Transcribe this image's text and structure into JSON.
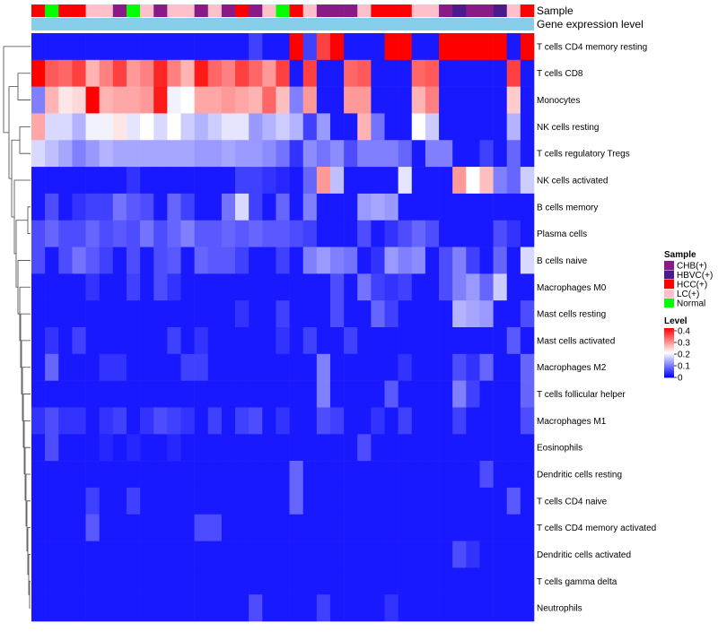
{
  "chart_data": {
    "type": "heatmap",
    "title": "",
    "annotation_labels": [
      "Sample",
      "Gene expression level"
    ],
    "rows": [
      "T cells CD4 memory resting",
      "T cells CD8",
      "Monocytes",
      "NK cells resting",
      "T cells regulatory  Tregs",
      "NK cells activated",
      "B cells memory",
      "Plasma cells",
      "B cells naive",
      "Macrophages M0",
      "Mast cells resting",
      "Mast cells activated",
      "Macrophages M2",
      "T cells follicular helper",
      "Macrophages M1",
      "Eosinophils",
      "Dendritic cells resting",
      "T cells CD4 naive",
      "T cells CD4 memory activated",
      "Dendritic cells activated",
      "T cells gamma delta",
      "Neutrophils"
    ],
    "sample_groups": [
      "HCC(+)",
      "Normal",
      "HCC(+)",
      "HCC(+)",
      "LC(+)",
      "LC(+)",
      "CHB(+)",
      "Normal",
      "LC(+)",
      "CHB(+)",
      "LC(+)",
      "LC(+)",
      "CHB(+)",
      "LC(+)",
      "CHB(+)",
      "HCC(+)",
      "CHB(+)",
      "LC(+)",
      "Normal",
      "HCC(+)",
      "LC(+)",
      "CHB(+)",
      "CHB(+)",
      "CHB(+)",
      "LC(+)",
      "HCC(+)",
      "HCC(+)",
      "HCC(+)",
      "LC(+)",
      "LC(+)",
      "CHB(+)",
      "HBVC(+)",
      "CHB(+)",
      "CHB(+)",
      "HBVC(+)",
      "LC(+)",
      "HCC(+)"
    ],
    "values": [
      [
        0.02,
        0.02,
        0.02,
        0.02,
        0.02,
        0.02,
        0.02,
        0.02,
        0.02,
        0.02,
        0.02,
        0.02,
        0.02,
        0.02,
        0.02,
        0.02,
        0.05,
        0.02,
        0.02,
        0.4,
        0.05,
        0.35,
        0.4,
        0.02,
        0.02,
        0.02,
        0.4,
        0.4,
        0.02,
        0.02,
        0.4,
        0.4,
        0.4,
        0.4,
        0.4,
        0.02,
        0.4
      ],
      [
        0.4,
        0.33,
        0.32,
        0.35,
        0.26,
        0.3,
        0.35,
        0.28,
        0.3,
        0.37,
        0.3,
        0.26,
        0.38,
        0.32,
        0.3,
        0.35,
        0.32,
        0.28,
        0.35,
        0.02,
        0.35,
        0.02,
        0.02,
        0.32,
        0.33,
        0.02,
        0.02,
        0.02,
        0.32,
        0.33,
        0.02,
        0.02,
        0.02,
        0.02,
        0.02,
        0.35,
        0.02
      ],
      [
        0.1,
        0.26,
        0.22,
        0.23,
        0.4,
        0.26,
        0.27,
        0.27,
        0.28,
        0.38,
        0.19,
        0.2,
        0.27,
        0.27,
        0.28,
        0.27,
        0.26,
        0.32,
        0.25,
        0.1,
        0.28,
        0.02,
        0.02,
        0.28,
        0.28,
        0.02,
        0.02,
        0.02,
        0.26,
        0.3,
        0.02,
        0.02,
        0.02,
        0.02,
        0.02,
        0.24,
        0.02
      ],
      [
        0.27,
        0.17,
        0.17,
        0.14,
        0.19,
        0.19,
        0.22,
        0.18,
        0.2,
        0.17,
        0.2,
        0.16,
        0.14,
        0.16,
        0.18,
        0.18,
        0.12,
        0.14,
        0.16,
        0.14,
        0.05,
        0.12,
        0.02,
        0.02,
        0.26,
        0.09,
        0.02,
        0.02,
        0.2,
        0.16,
        0.02,
        0.02,
        0.02,
        0.02,
        0.02,
        0.14,
        0.02
      ],
      [
        0.17,
        0.15,
        0.13,
        0.1,
        0.12,
        0.14,
        0.13,
        0.13,
        0.13,
        0.13,
        0.13,
        0.13,
        0.12,
        0.12,
        0.13,
        0.12,
        0.12,
        0.11,
        0.09,
        0.04,
        0.11,
        0.09,
        0.11,
        0.06,
        0.1,
        0.1,
        0.1,
        0.08,
        0.02,
        0.1,
        0.1,
        0.02,
        0.02,
        0.05,
        0.02,
        0.08,
        0.02
      ],
      [
        0.02,
        0.02,
        0.02,
        0.02,
        0.02,
        0.02,
        0.02,
        0.04,
        0.02,
        0.02,
        0.02,
        0.02,
        0.02,
        0.02,
        0.02,
        0.05,
        0.05,
        0.04,
        0.03,
        0.02,
        0.08,
        0.28,
        0.15,
        0.02,
        0.02,
        0.02,
        0.02,
        0.18,
        0.02,
        0.02,
        0.02,
        0.28,
        0.2,
        0.25,
        0.1,
        0.08,
        0.16
      ],
      [
        0.02,
        0.06,
        0.02,
        0.04,
        0.05,
        0.05,
        0.09,
        0.07,
        0.06,
        0.02,
        0.08,
        0.05,
        0.02,
        0.02,
        0.09,
        0.17,
        0.05,
        0.02,
        0.08,
        0.02,
        0.1,
        0.02,
        0.02,
        0.02,
        0.12,
        0.13,
        0.12,
        0.02,
        0.02,
        0.02,
        0.02,
        0.02,
        0.02,
        0.02,
        0.02,
        0.02,
        0.02
      ],
      [
        0.06,
        0.08,
        0.06,
        0.06,
        0.08,
        0.06,
        0.07,
        0.06,
        0.09,
        0.06,
        0.08,
        0.1,
        0.07,
        0.07,
        0.08,
        0.07,
        0.08,
        0.07,
        0.07,
        0.06,
        0.05,
        0.02,
        0.02,
        0.02,
        0.06,
        0.02,
        0.04,
        0.06,
        0.08,
        0.06,
        0.02,
        0.02,
        0.02,
        0.02,
        0.06,
        0.04,
        0.02
      ],
      [
        0.06,
        0.02,
        0.06,
        0.09,
        0.07,
        0.05,
        0.02,
        0.06,
        0.02,
        0.06,
        0.07,
        0.02,
        0.08,
        0.07,
        0.07,
        0.05,
        0.02,
        0.02,
        0.05,
        0.02,
        0.1,
        0.12,
        0.1,
        0.09,
        0.02,
        0.04,
        0.12,
        0.1,
        0.11,
        0.02,
        0.06,
        0.1,
        0.05,
        0.02,
        0.08,
        0.02,
        0.17
      ],
      [
        0.02,
        0.02,
        0.02,
        0.02,
        0.04,
        0.02,
        0.02,
        0.05,
        0.02,
        0.06,
        0.04,
        0.02,
        0.02,
        0.02,
        0.02,
        0.02,
        0.02,
        0.02,
        0.02,
        0.02,
        0.02,
        0.02,
        0.06,
        0.02,
        0.09,
        0.05,
        0.04,
        0.05,
        0.02,
        0.02,
        0.06,
        0.1,
        0.12,
        0.08,
        0.16,
        0.02,
        0.02
      ],
      [
        0.02,
        0.02,
        0.02,
        0.02,
        0.02,
        0.02,
        0.02,
        0.02,
        0.02,
        0.02,
        0.02,
        0.02,
        0.02,
        0.02,
        0.02,
        0.04,
        0.02,
        0.02,
        0.05,
        0.02,
        0.02,
        0.02,
        0.06,
        0.02,
        0.02,
        0.08,
        0.05,
        0.02,
        0.02,
        0.02,
        0.02,
        0.14,
        0.13,
        0.12,
        0.02,
        0.02,
        0.06
      ],
      [
        0.02,
        0.04,
        0.02,
        0.05,
        0.02,
        0.02,
        0.02,
        0.02,
        0.02,
        0.02,
        0.05,
        0.02,
        0.04,
        0.02,
        0.02,
        0.02,
        0.02,
        0.02,
        0.04,
        0.02,
        0.05,
        0.02,
        0.02,
        0.05,
        0.02,
        0.02,
        0.02,
        0.02,
        0.02,
        0.02,
        0.02,
        0.02,
        0.02,
        0.02,
        0.02,
        0.07,
        0.02
      ],
      [
        0.02,
        0.08,
        0.02,
        0.02,
        0.02,
        0.04,
        0.04,
        0.02,
        0.02,
        0.02,
        0.02,
        0.05,
        0.05,
        0.02,
        0.02,
        0.02,
        0.02,
        0.02,
        0.02,
        0.02,
        0.02,
        0.1,
        0.02,
        0.02,
        0.02,
        0.02,
        0.02,
        0.04,
        0.02,
        0.02,
        0.02,
        0.06,
        0.04,
        0.08,
        0.02,
        0.02,
        0.08
      ],
      [
        0.02,
        0.02,
        0.02,
        0.02,
        0.02,
        0.02,
        0.02,
        0.02,
        0.02,
        0.02,
        0.02,
        0.02,
        0.02,
        0.02,
        0.02,
        0.02,
        0.02,
        0.02,
        0.02,
        0.02,
        0.02,
        0.1,
        0.02,
        0.02,
        0.02,
        0.02,
        0.07,
        0.02,
        0.02,
        0.02,
        0.02,
        0.1,
        0.05,
        0.02,
        0.02,
        0.02,
        0.08
      ],
      [
        0.04,
        0.06,
        0.04,
        0.04,
        0.02,
        0.04,
        0.05,
        0.02,
        0.04,
        0.06,
        0.05,
        0.04,
        0.02,
        0.05,
        0.02,
        0.05,
        0.06,
        0.02,
        0.04,
        0.02,
        0.02,
        0.06,
        0.05,
        0.02,
        0.02,
        0.04,
        0.02,
        0.05,
        0.02,
        0.02,
        0.02,
        0.05,
        0.02,
        0.02,
        0.02,
        0.02,
        0.06
      ],
      [
        0.02,
        0.06,
        0.02,
        0.02,
        0.02,
        0.03,
        0.02,
        0.03,
        0.02,
        0.02,
        0.03,
        0.02,
        0.02,
        0.02,
        0.02,
        0.02,
        0.02,
        0.02,
        0.02,
        0.02,
        0.02,
        0.02,
        0.02,
        0.02,
        0.06,
        0.02,
        0.02,
        0.02,
        0.02,
        0.02,
        0.02,
        0.02,
        0.02,
        0.02,
        0.02,
        0.02,
        0.02
      ],
      [
        0.02,
        0.02,
        0.02,
        0.02,
        0.02,
        0.02,
        0.02,
        0.02,
        0.02,
        0.02,
        0.02,
        0.02,
        0.02,
        0.02,
        0.02,
        0.02,
        0.02,
        0.02,
        0.02,
        0.08,
        0.02,
        0.02,
        0.02,
        0.02,
        0.02,
        0.02,
        0.02,
        0.02,
        0.02,
        0.02,
        0.02,
        0.02,
        0.02,
        0.06,
        0.02,
        0.02,
        0.02
      ],
      [
        0.02,
        0.02,
        0.02,
        0.02,
        0.05,
        0.02,
        0.02,
        0.05,
        0.02,
        0.02,
        0.02,
        0.02,
        0.02,
        0.02,
        0.02,
        0.02,
        0.02,
        0.02,
        0.02,
        0.08,
        0.02,
        0.02,
        0.02,
        0.02,
        0.02,
        0.02,
        0.02,
        0.02,
        0.02,
        0.02,
        0.02,
        0.02,
        0.02,
        0.02,
        0.02,
        0.07,
        0.02
      ],
      [
        0.02,
        0.02,
        0.02,
        0.02,
        0.07,
        0.02,
        0.02,
        0.02,
        0.02,
        0.02,
        0.02,
        0.02,
        0.06,
        0.06,
        0.02,
        0.02,
        0.02,
        0.02,
        0.02,
        0.02,
        0.02,
        0.02,
        0.02,
        0.02,
        0.02,
        0.02,
        0.02,
        0.02,
        0.02,
        0.02,
        0.02,
        0.02,
        0.02,
        0.02,
        0.02,
        0.02,
        0.02
      ],
      [
        0.02,
        0.02,
        0.02,
        0.02,
        0.02,
        0.02,
        0.02,
        0.02,
        0.02,
        0.02,
        0.02,
        0.02,
        0.02,
        0.02,
        0.02,
        0.02,
        0.02,
        0.02,
        0.02,
        0.02,
        0.02,
        0.02,
        0.02,
        0.02,
        0.02,
        0.02,
        0.02,
        0.02,
        0.02,
        0.02,
        0.02,
        0.06,
        0.04,
        0.02,
        0.02,
        0.02,
        0.02
      ],
      [
        0.02,
        0.02,
        0.02,
        0.02,
        0.02,
        0.02,
        0.02,
        0.02,
        0.02,
        0.02,
        0.02,
        0.02,
        0.02,
        0.02,
        0.02,
        0.02,
        0.02,
        0.02,
        0.02,
        0.02,
        0.02,
        0.02,
        0.02,
        0.02,
        0.02,
        0.02,
        0.02,
        0.02,
        0.02,
        0.02,
        0.02,
        0.02,
        0.02,
        0.02,
        0.02,
        0.02,
        0.02
      ],
      [
        0.02,
        0.02,
        0.02,
        0.02,
        0.02,
        0.02,
        0.02,
        0.02,
        0.02,
        0.02,
        0.02,
        0.02,
        0.02,
        0.02,
        0.02,
        0.02,
        0.06,
        0.02,
        0.02,
        0.02,
        0.02,
        0.05,
        0.02,
        0.02,
        0.02,
        0.02,
        0.04,
        0.02,
        0.02,
        0.02,
        0.02,
        0.02,
        0.02,
        0.02,
        0.02,
        0.02,
        0.02
      ]
    ],
    "legend_sample": {
      "title": "Sample",
      "entries": [
        {
          "label": "CHB(+)",
          "color": "#8B1A89"
        },
        {
          "label": "HBVC(+)",
          "color": "#4B1A8C"
        },
        {
          "label": "HCC(+)",
          "color": "#FF0000"
        },
        {
          "label": "LC(+)",
          "color": "#FFC0CB"
        },
        {
          "label": "Normal",
          "color": "#00FF00"
        }
      ]
    },
    "legend_level": {
      "title": "Level",
      "ticks": [
        "0.4",
        "0.3",
        "0.2",
        "0.1",
        "0"
      ],
      "vmin": 0,
      "vmax": 0.4
    },
    "colors": {
      "low": "#0000FF",
      "mid": "#FFFFFF",
      "high": "#FF0000",
      "expression_bar": "#87CEEB"
    }
  }
}
